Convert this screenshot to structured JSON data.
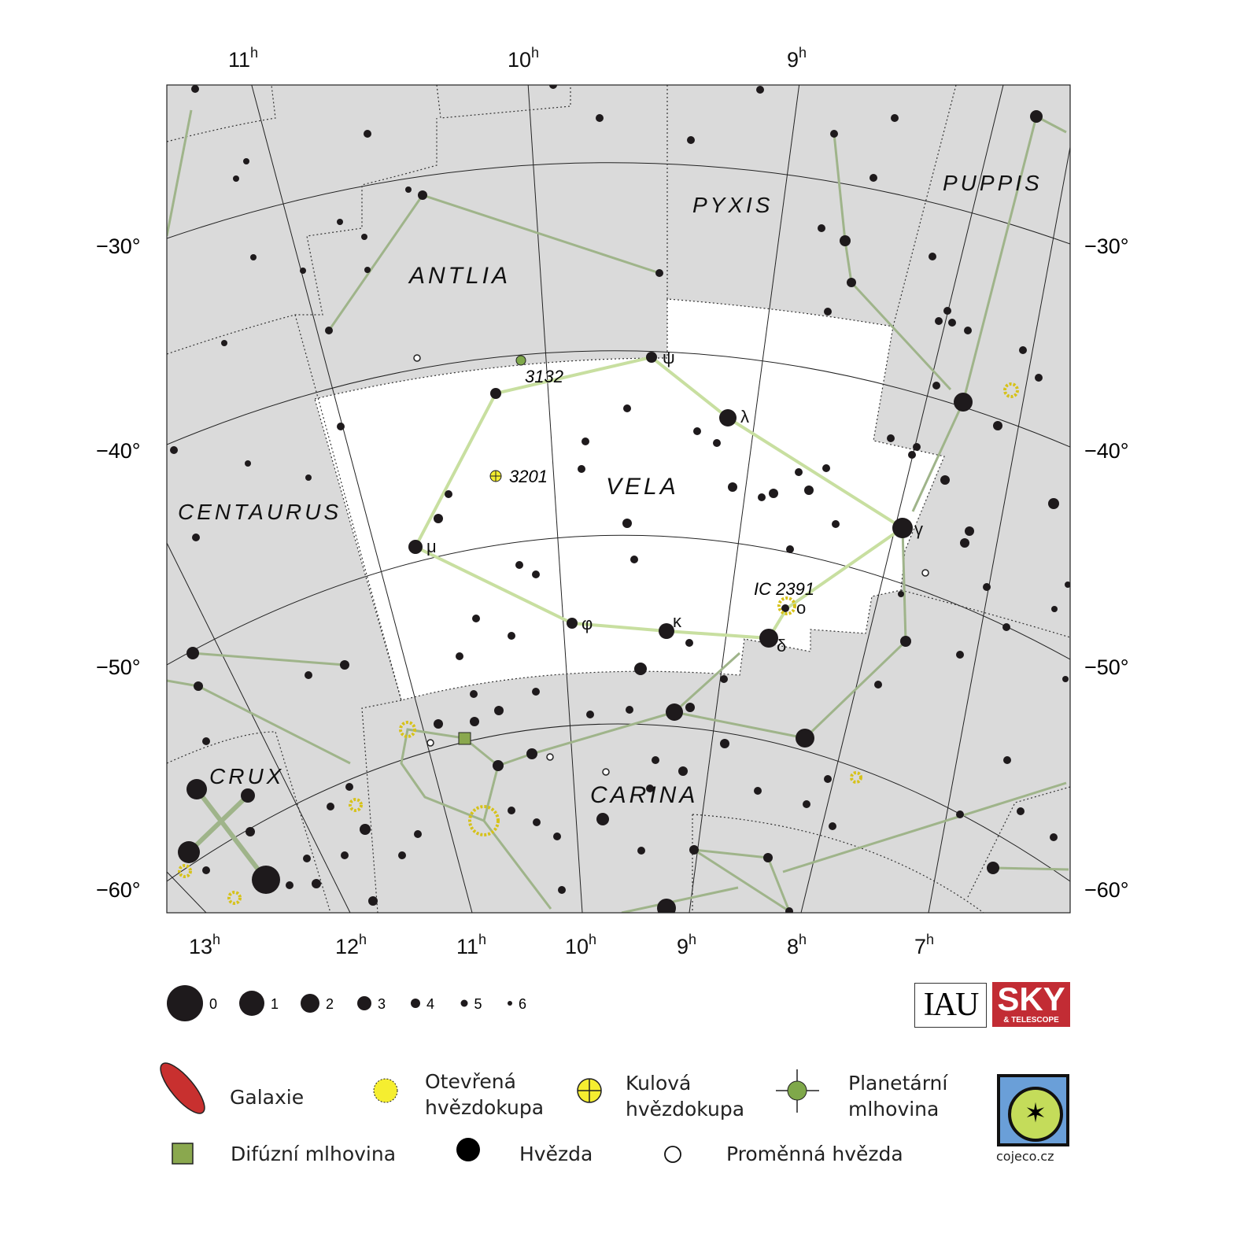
{
  "map": {
    "constellations": [
      "ANTLIA",
      "PYXIS",
      "PUPPIS",
      "VELA",
      "CENTAURUS",
      "CRUX",
      "CARINA"
    ],
    "ra_top": [
      "11h",
      "10h",
      "9h"
    ],
    "ra_bottom": [
      "13h",
      "12h",
      "11h",
      "10h",
      "9h",
      "8h",
      "7h"
    ],
    "dec_labels": [
      "−30°",
      "−40°",
      "−50°",
      "−60°"
    ],
    "star_labels": {
      "gamma": "γ",
      "delta": "δ",
      "lambda": "λ",
      "kappa": "κ",
      "mu": "μ",
      "psi": "ψ",
      "phi": "φ",
      "omicron": "o"
    },
    "objects": {
      "ngc3132": "3132",
      "ngc3201": "3201",
      "ic2391": "IC 2391"
    },
    "colors": {
      "background": "#dadada",
      "vela": "#ffffff",
      "lines": "#c8dfa0",
      "other_lines": "#9fb48a",
      "open_cluster": "#f5ee30",
      "planetary": "#7fa84a",
      "galaxy": "#c8302f"
    }
  },
  "magnitude_scale": [
    "0",
    "1",
    "2",
    "3",
    "4",
    "5",
    "6"
  ],
  "legend": {
    "galaxy": "Galaxie",
    "open_cluster": "Otevřená hvězdokupa",
    "globular_cluster": "Kulová hvězdokupa",
    "planetary_nebula": "Planetární mlhovina",
    "diffuse_nebula": "Difúzní mlhovina",
    "star": "Hvězda",
    "variable_star": "Proměnná hvězda"
  },
  "logos": {
    "iau": "IAU",
    "sky": "SKY",
    "sky_sub": "& TELESCOPE",
    "cojeco": "cojeco.cz"
  }
}
